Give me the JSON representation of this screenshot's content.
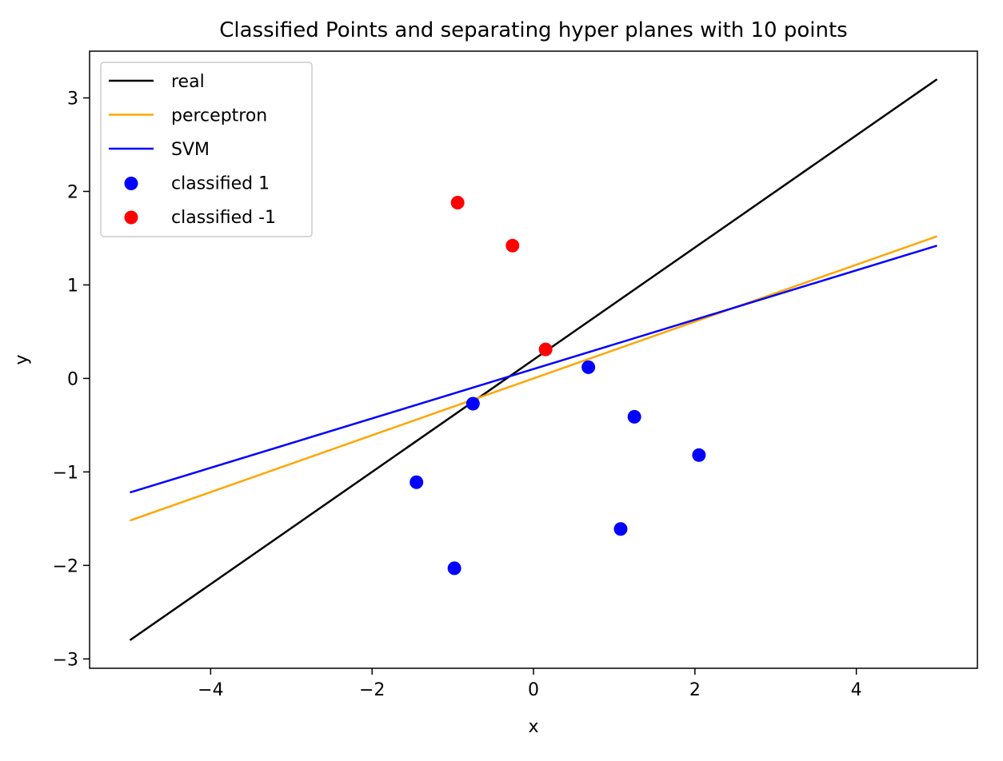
{
  "chart_data": {
    "type": "scatter",
    "title": "Classified Points and separating hyper planes with 10 points",
    "xlabel": "x",
    "ylabel": "y",
    "xlim": [
      -5.5,
      5.5
    ],
    "ylim": [
      -3.1,
      3.5
    ],
    "grid": false,
    "legend_position": "upper-left",
    "xticks": [
      -4,
      -2,
      0,
      2,
      4
    ],
    "yticks": [
      -3,
      -2,
      -1,
      0,
      1,
      2,
      3
    ],
    "lines": [
      {
        "name": "real",
        "color": "#000000",
        "x": [
          -5,
          5
        ],
        "y": [
          -2.8,
          3.2
        ]
      },
      {
        "name": "perceptron",
        "color": "#ffa500",
        "x": [
          -5,
          5
        ],
        "y": [
          -1.52,
          1.52
        ]
      },
      {
        "name": "SVM",
        "color": "#0000ff",
        "x": [
          -5,
          5
        ],
        "y": [
          -1.22,
          1.42
        ]
      }
    ],
    "scatter": [
      {
        "name": "classified 1",
        "color": "#0000ff",
        "points": [
          {
            "x": 0.68,
            "y": 0.12
          },
          {
            "x": -0.75,
            "y": -0.27
          },
          {
            "x": 1.25,
            "y": -0.41
          },
          {
            "x": 2.05,
            "y": -0.82
          },
          {
            "x": -1.45,
            "y": -1.11
          },
          {
            "x": 1.08,
            "y": -1.61
          },
          {
            "x": -0.98,
            "y": -2.03
          }
        ]
      },
      {
        "name": "classified -1",
        "color": "#ff0000",
        "points": [
          {
            "x": -0.94,
            "y": 1.88
          },
          {
            "x": -0.26,
            "y": 1.42
          },
          {
            "x": 0.15,
            "y": 0.31
          }
        ]
      }
    ]
  }
}
